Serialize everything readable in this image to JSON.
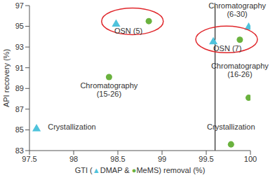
{
  "chart_data": {
    "type": "scatter",
    "x_label": "GTI (▲DMAP & ●MeMS) removal (%)",
    "y_label": "API recovery (%)",
    "xlim": [
      97.5,
      100
    ],
    "xticks": [
      97.5,
      98,
      98.5,
      99,
      99.5,
      100
    ],
    "ylim": [
      83,
      97
    ],
    "yticks": [
      83,
      85,
      87,
      89,
      91,
      93,
      95,
      97
    ],
    "grid": false,
    "vline": 99.6,
    "series": [
      {
        "name": "DMAP",
        "color": "#4fc3dc",
        "marker": "triangle",
        "x": [
          97.58,
          98.48,
          99.58,
          99.98
        ],
        "values": [
          85.1,
          95.2,
          93.5,
          94.9
        ]
      },
      {
        "name": "MeMS",
        "color": "#6ab23e",
        "marker": "circle",
        "x": [
          98.4,
          98.85,
          99.88,
          99.98,
          99.78
        ],
        "values": [
          90.1,
          95.5,
          93.7,
          88.1,
          83.6
        ]
      }
    ],
    "annotations": [
      {
        "text": "OSN (5)",
        "x": 98.62,
        "y": 94.3
      },
      {
        "text": "OSN (7)",
        "x": 99.74,
        "y": 92.6
      },
      {
        "text": "Chromatography\n(6-30)",
        "x": 99.85,
        "y": 96.7
      },
      {
        "text": "Chromatography\n(15-26)",
        "x": 98.4,
        "y": 89.0
      },
      {
        "text": "Chromatography\n(16-26)",
        "x": 99.88,
        "y": 90.9
      },
      {
        "text": "Crystallization",
        "x": 97.98,
        "y": 85.0
      },
      {
        "text": "Crystallization",
        "x": 99.78,
        "y": 85.0
      }
    ]
  }
}
